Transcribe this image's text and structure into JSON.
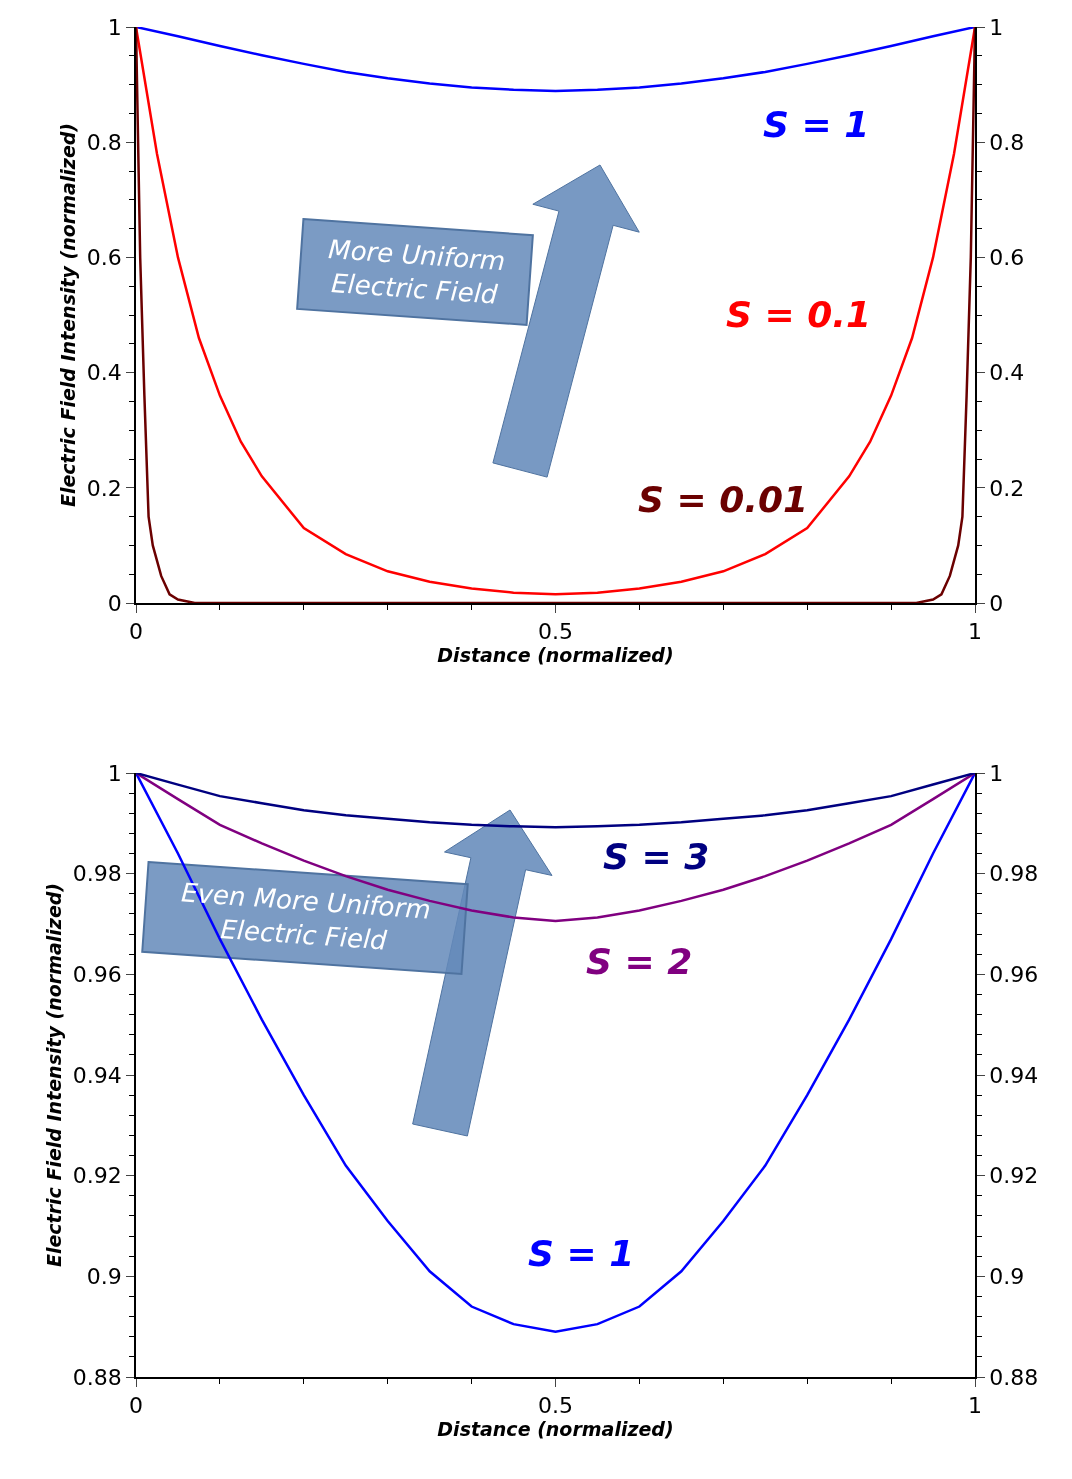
{
  "chart_data": [
    {
      "type": "line",
      "xlabel": "Distance (normalized)",
      "ylabel": "Electric Field Intensity (normalized)",
      "xlim": [
        0,
        1
      ],
      "ylim": [
        0,
        1
      ],
      "y2lim": [
        0,
        1
      ],
      "legend": false,
      "grid": false,
      "xticks": [
        0,
        {
          "value": 0.1,
          "label": null
        },
        {
          "value": 0.2,
          "label": null
        },
        {
          "value": 0.3,
          "label": null
        },
        {
          "value": 0.4,
          "label": null
        },
        0.5,
        {
          "value": 0.6,
          "label": null
        },
        {
          "value": 0.7,
          "label": null
        },
        {
          "value": 0.8,
          "label": null
        },
        {
          "value": 0.9,
          "label": null
        },
        1
      ],
      "yticks": [
        0,
        {
          "value": 0.05,
          "label": null
        },
        {
          "value": 0.1,
          "label": null
        },
        {
          "value": 0.15,
          "label": null
        },
        0.2,
        {
          "value": 0.25,
          "label": null
        },
        {
          "value": 0.3,
          "label": null
        },
        {
          "value": 0.35,
          "label": null
        },
        0.4,
        {
          "value": 0.45,
          "label": null
        },
        {
          "value": 0.5,
          "label": null
        },
        {
          "value": 0.55,
          "label": null
        },
        0.6,
        {
          "value": 0.65,
          "label": null
        },
        {
          "value": 0.7,
          "label": null
        },
        {
          "value": 0.75,
          "label": null
        },
        0.8,
        {
          "value": 0.85,
          "label": null
        },
        {
          "value": 0.9,
          "label": null
        },
        {
          "value": 0.95,
          "label": null
        },
        1
      ],
      "y2ticks": [
        0,
        {
          "value": 0.05,
          "label": null
        },
        {
          "value": 0.1,
          "label": null
        },
        {
          "value": 0.15,
          "label": null
        },
        0.2,
        {
          "value": 0.25,
          "label": null
        },
        {
          "value": 0.3,
          "label": null
        },
        {
          "value": 0.35,
          "label": null
        },
        0.4,
        {
          "value": 0.45,
          "label": null
        },
        {
          "value": 0.5,
          "label": null
        },
        {
          "value": 0.55,
          "label": null
        },
        0.6,
        {
          "value": 0.65,
          "label": null
        },
        {
          "value": 0.7,
          "label": null
        },
        {
          "value": 0.75,
          "label": null
        },
        0.8,
        {
          "value": 0.85,
          "label": null
        },
        {
          "value": 0.9,
          "label": null
        },
        {
          "value": 0.95,
          "label": null
        },
        1
      ],
      "annotations": [
        "More Uniform\nElectric Field"
      ],
      "series": [
        {
          "name": "S = 1",
          "color": "#0000ff",
          "x": [
            0,
            0.05,
            0.1,
            0.15,
            0.2,
            0.25,
            0.3,
            0.35,
            0.4,
            0.45,
            0.5,
            0.55,
            0.6,
            0.65,
            0.7,
            0.75,
            0.8,
            0.85,
            0.9,
            0.95,
            1
          ],
          "values": [
            1,
            0.984,
            0.967,
            0.951,
            0.936,
            0.922,
            0.911,
            0.902,
            0.895,
            0.891,
            0.889,
            0.891,
            0.895,
            0.902,
            0.911,
            0.922,
            0.936,
            0.951,
            0.967,
            0.984,
            1
          ]
        },
        {
          "name": "S = 0.1",
          "color": "#ff0000",
          "x": [
            0,
            0.025,
            0.05,
            0.075,
            0.1,
            0.125,
            0.15,
            0.2,
            0.25,
            0.3,
            0.35,
            0.4,
            0.45,
            0.5,
            0.55,
            0.6,
            0.65,
            0.7,
            0.75,
            0.8,
            0.85,
            0.875,
            0.9,
            0.925,
            0.95,
            0.975,
            1
          ],
          "values": [
            1,
            0.78,
            0.6,
            0.46,
            0.36,
            0.28,
            0.22,
            0.13,
            0.085,
            0.055,
            0.037,
            0.025,
            0.018,
            0.015,
            0.018,
            0.025,
            0.037,
            0.055,
            0.085,
            0.13,
            0.22,
            0.28,
            0.36,
            0.46,
            0.6,
            0.78,
            1
          ]
        },
        {
          "name": "S = 0.01",
          "color": "#6b0000",
          "x": [
            0,
            0.005,
            0.01,
            0.015,
            0.02,
            0.03,
            0.04,
            0.05,
            0.07,
            0.5,
            0.93,
            0.95,
            0.96,
            0.97,
            0.98,
            0.985,
            0.99,
            0.995,
            1
          ],
          "values": [
            1,
            0.6,
            0.36,
            0.15,
            0.1,
            0.047,
            0.015,
            0.006,
            0,
            0,
            0,
            0.006,
            0.015,
            0.047,
            0.1,
            0.15,
            0.36,
            0.6,
            1
          ]
        }
      ]
    },
    {
      "type": "line",
      "xlabel": "Distance (normalized)",
      "ylabel": "Electric Field Intensity (normalized)",
      "xlim": [
        0,
        1
      ],
      "ylim": [
        0.88,
        1
      ],
      "y2lim": [
        0.88,
        1
      ],
      "legend": false,
      "grid": false,
      "xticks": [
        0,
        {
          "value": 0.1,
          "label": null
        },
        {
          "value": 0.2,
          "label": null
        },
        {
          "value": 0.3,
          "label": null
        },
        {
          "value": 0.4,
          "label": null
        },
        0.5,
        {
          "value": 0.6,
          "label": null
        },
        {
          "value": 0.7,
          "label": null
        },
        {
          "value": 0.8,
          "label": null
        },
        {
          "value": 0.9,
          "label": null
        },
        1
      ],
      "yticks": [
        0.88,
        {
          "value": 0.884,
          "label": null
        },
        {
          "value": 0.888,
          "label": null
        },
        {
          "value": 0.892,
          "label": null
        },
        {
          "value": 0.896,
          "label": null
        },
        0.9,
        {
          "value": 0.904,
          "label": null
        },
        {
          "value": 0.908,
          "label": null
        },
        {
          "value": 0.912,
          "label": null
        },
        {
          "value": 0.916,
          "label": null
        },
        0.92,
        {
          "value": 0.924,
          "label": null
        },
        {
          "value": 0.928,
          "label": null
        },
        {
          "value": 0.932,
          "label": null
        },
        {
          "value": 0.936,
          "label": null
        },
        0.94,
        {
          "value": 0.944,
          "label": null
        },
        {
          "value": 0.948,
          "label": null
        },
        {
          "value": 0.952,
          "label": null
        },
        {
          "value": 0.956,
          "label": null
        },
        0.96,
        {
          "value": 0.964,
          "label": null
        },
        {
          "value": 0.968,
          "label": null
        },
        {
          "value": 0.972,
          "label": null
        },
        {
          "value": 0.976,
          "label": null
        },
        0.98,
        {
          "value": 0.984,
          "label": null
        },
        {
          "value": 0.988,
          "label": null
        },
        {
          "value": 0.992,
          "label": null
        },
        {
          "value": 0.996,
          "label": null
        },
        1
      ],
      "y2ticks": [
        0.88,
        {
          "value": 0.884,
          "label": null
        },
        {
          "value": 0.888,
          "label": null
        },
        {
          "value": 0.892,
          "label": null
        },
        {
          "value": 0.896,
          "label": null
        },
        0.9,
        {
          "value": 0.904,
          "label": null
        },
        {
          "value": 0.908,
          "label": null
        },
        {
          "value": 0.912,
          "label": null
        },
        {
          "value": 0.916,
          "label": null
        },
        0.92,
        {
          "value": 0.924,
          "label": null
        },
        {
          "value": 0.928,
          "label": null
        },
        {
          "value": 0.932,
          "label": null
        },
        {
          "value": 0.936,
          "label": null
        },
        0.94,
        {
          "value": 0.944,
          "label": null
        },
        {
          "value": 0.948,
          "label": null
        },
        {
          "value": 0.952,
          "label": null
        },
        {
          "value": 0.956,
          "label": null
        },
        0.96,
        {
          "value": 0.964,
          "label": null
        },
        {
          "value": 0.968,
          "label": null
        },
        {
          "value": 0.972,
          "label": null
        },
        {
          "value": 0.976,
          "label": null
        },
        0.98,
        {
          "value": 0.984,
          "label": null
        },
        {
          "value": 0.988,
          "label": null
        },
        {
          "value": 0.992,
          "label": null
        },
        {
          "value": 0.996,
          "label": null
        },
        1
      ],
      "annotations": [
        "Even More Uniform\nElectric Field"
      ],
      "series": [
        {
          "name": "S = 1",
          "color": "#0000ff",
          "x": [
            0,
            0.05,
            0.1,
            0.15,
            0.2,
            0.25,
            0.3,
            0.35,
            0.4,
            0.45,
            0.5,
            0.55,
            0.6,
            0.65,
            0.7,
            0.75,
            0.8,
            0.85,
            0.9,
            0.95,
            1
          ],
          "values": [
            1,
            0.984,
            0.967,
            0.951,
            0.936,
            0.922,
            0.911,
            0.901,
            0.894,
            0.8905,
            0.889,
            0.8905,
            0.894,
            0.901,
            0.911,
            0.922,
            0.936,
            0.951,
            0.967,
            0.984,
            1
          ]
        },
        {
          "name": "S = 2",
          "color": "#800080",
          "x": [
            0,
            0.05,
            0.1,
            0.15,
            0.2,
            0.25,
            0.3,
            0.35,
            0.4,
            0.45,
            0.5,
            0.55,
            0.6,
            0.65,
            0.7,
            0.75,
            0.8,
            0.85,
            0.9,
            0.95,
            1
          ],
          "values": [
            1,
            0.9948,
            0.9897,
            0.986,
            0.9826,
            0.9795,
            0.9768,
            0.9746,
            0.9727,
            0.9713,
            0.9706,
            0.9713,
            0.9727,
            0.9746,
            0.9768,
            0.9795,
            0.9826,
            0.986,
            0.9897,
            0.9948,
            1
          ]
        },
        {
          "name": "S = 3",
          "color": "#000080",
          "x": [
            0,
            0.05,
            0.1,
            0.15,
            0.2,
            0.25,
            0.3,
            0.35,
            0.4,
            0.45,
            0.5,
            0.55,
            0.6,
            0.65,
            0.7,
            0.75,
            0.8,
            0.85,
            0.9,
            0.95,
            1
          ],
          "values": [
            1,
            0.9977,
            0.9954,
            0.994,
            0.9926,
            0.9916,
            0.9909,
            0.9902,
            0.9897,
            0.9894,
            0.9892,
            0.9894,
            0.9897,
            0.9902,
            0.9909,
            0.9916,
            0.9926,
            0.994,
            0.9954,
            0.9977,
            1
          ]
        }
      ]
    }
  ]
}
